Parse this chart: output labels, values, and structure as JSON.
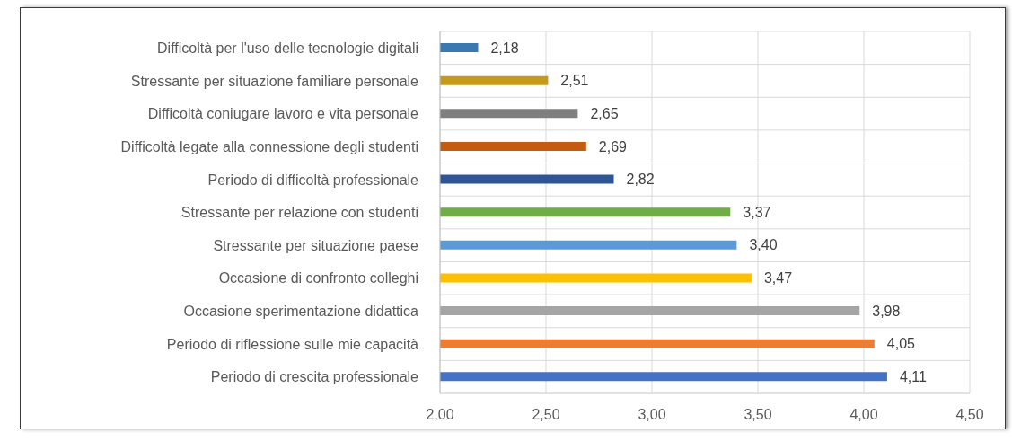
{
  "chart_data": {
    "type": "bar",
    "orientation": "horizontal",
    "categories": [
      "Difficoltà per l'uso delle tecnologie digitali",
      "Stressante per situazione familiare personale",
      "Difficoltà coniugare lavoro e vita personale",
      "Difficoltà legate alla connessione degli studenti",
      "Periodo di difficoltà professionale",
      "Stressante per relazione con studenti",
      "Stressante per situazione paese",
      "Occasione di confronto colleghi",
      "Occasione sperimentazione didattica",
      "Periodo di riflessione sulle mie capacità",
      "Periodo di crescita professionale"
    ],
    "values": [
      2.18,
      2.51,
      2.65,
      2.69,
      2.82,
      3.37,
      3.4,
      3.47,
      3.98,
      4.05,
      4.11
    ],
    "colors": [
      "#3a78b2",
      "#c39a1c",
      "#7f7f7f",
      "#c55a11",
      "#2f5597",
      "#70ad47",
      "#5b9bd5",
      "#ffc000",
      "#a5a5a5",
      "#ed7d31",
      "#4472c4"
    ],
    "value_labels": [
      "2,18",
      "2,51",
      "2,65",
      "2,69",
      "2,82",
      "3,37",
      "3,40",
      "3,47",
      "3,98",
      "4,05",
      "4,11"
    ],
    "xlim": [
      2,
      4.5
    ],
    "xticks": [
      {
        "value": 2,
        "label": "2,00"
      },
      {
        "value": 2.5,
        "label": "2,50"
      },
      {
        "value": 3,
        "label": "3,00"
      },
      {
        "value": 3.5,
        "label": "3,50"
      },
      {
        "value": 4,
        "label": "4,00"
      },
      {
        "value": 4.5,
        "label": "4,50"
      }
    ],
    "grid": true
  }
}
